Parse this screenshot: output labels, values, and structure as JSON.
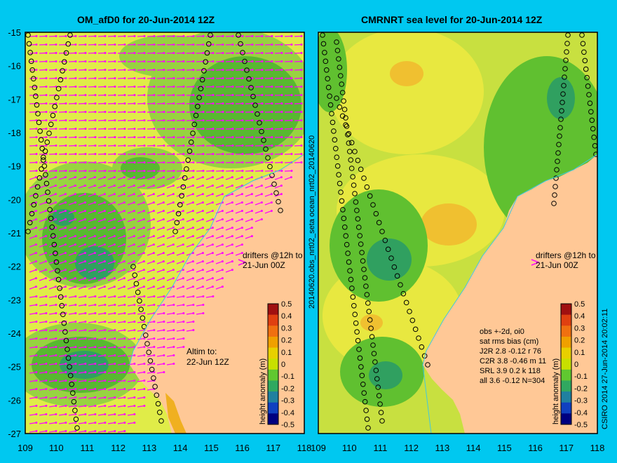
{
  "left_panel": {
    "title": "OM_afD0 for 20-Jun-2014 12Z",
    "drifter_note": [
      "drifters @12h to",
      "21-Jun 00Z"
    ],
    "altim_note": [
      "Altim to:",
      "22-Jun 12Z"
    ]
  },
  "right_panel": {
    "title": "CMRNRT sea level  for 20-Jun-2014 12Z",
    "drifter_note": [
      "drifters @12h to",
      "21-Jun 00Z"
    ],
    "vertical_label": "20140620.obs_nrt02_seta    ocean_nrt02_20140620",
    "stats_header": [
      "obs +-2d, oi0",
      "sat rms bias (cm)"
    ],
    "stats_rows": [
      "J2R   2.8 -0.12 r 76",
      "C2R   3.8 -0.46 m 11",
      "SRL   3.9 0.2 k 118",
      "all   3.6 -0.12 N=304"
    ],
    "credit": "CSIRO 2014   27-Jun-2014 20:02:11"
  },
  "axes": {
    "lon_ticks": [
      "109",
      "110",
      "111",
      "112",
      "113",
      "114",
      "115",
      "116",
      "117",
      "118"
    ],
    "lat_ticks": [
      "-15",
      "-16",
      "-17",
      "-18",
      "-19",
      "-20",
      "-21",
      "-22",
      "-23",
      "-24",
      "-25",
      "-26",
      "-27"
    ]
  },
  "colorbar": {
    "label": "height anomaly (m)",
    "ticks": [
      "0.5",
      "0.4",
      "0.3",
      "0.2",
      "0.1",
      "0",
      "-0.1",
      "-0.2",
      "-0.3",
      "-0.4",
      "-0.5"
    ],
    "colors": [
      "#a01010",
      "#e04010",
      "#f07010",
      "#f0a000",
      "#e8d000",
      "#c8e000",
      "#60c830",
      "#30a860",
      "#2080a0",
      "#1040c0",
      "#000080"
    ]
  },
  "colors": {
    "background": "#00c8f0",
    "land": "#ffc896",
    "sea_yellow": "#d8e840",
    "sea_green": "#60c030",
    "vector": "#ff00ff"
  }
}
